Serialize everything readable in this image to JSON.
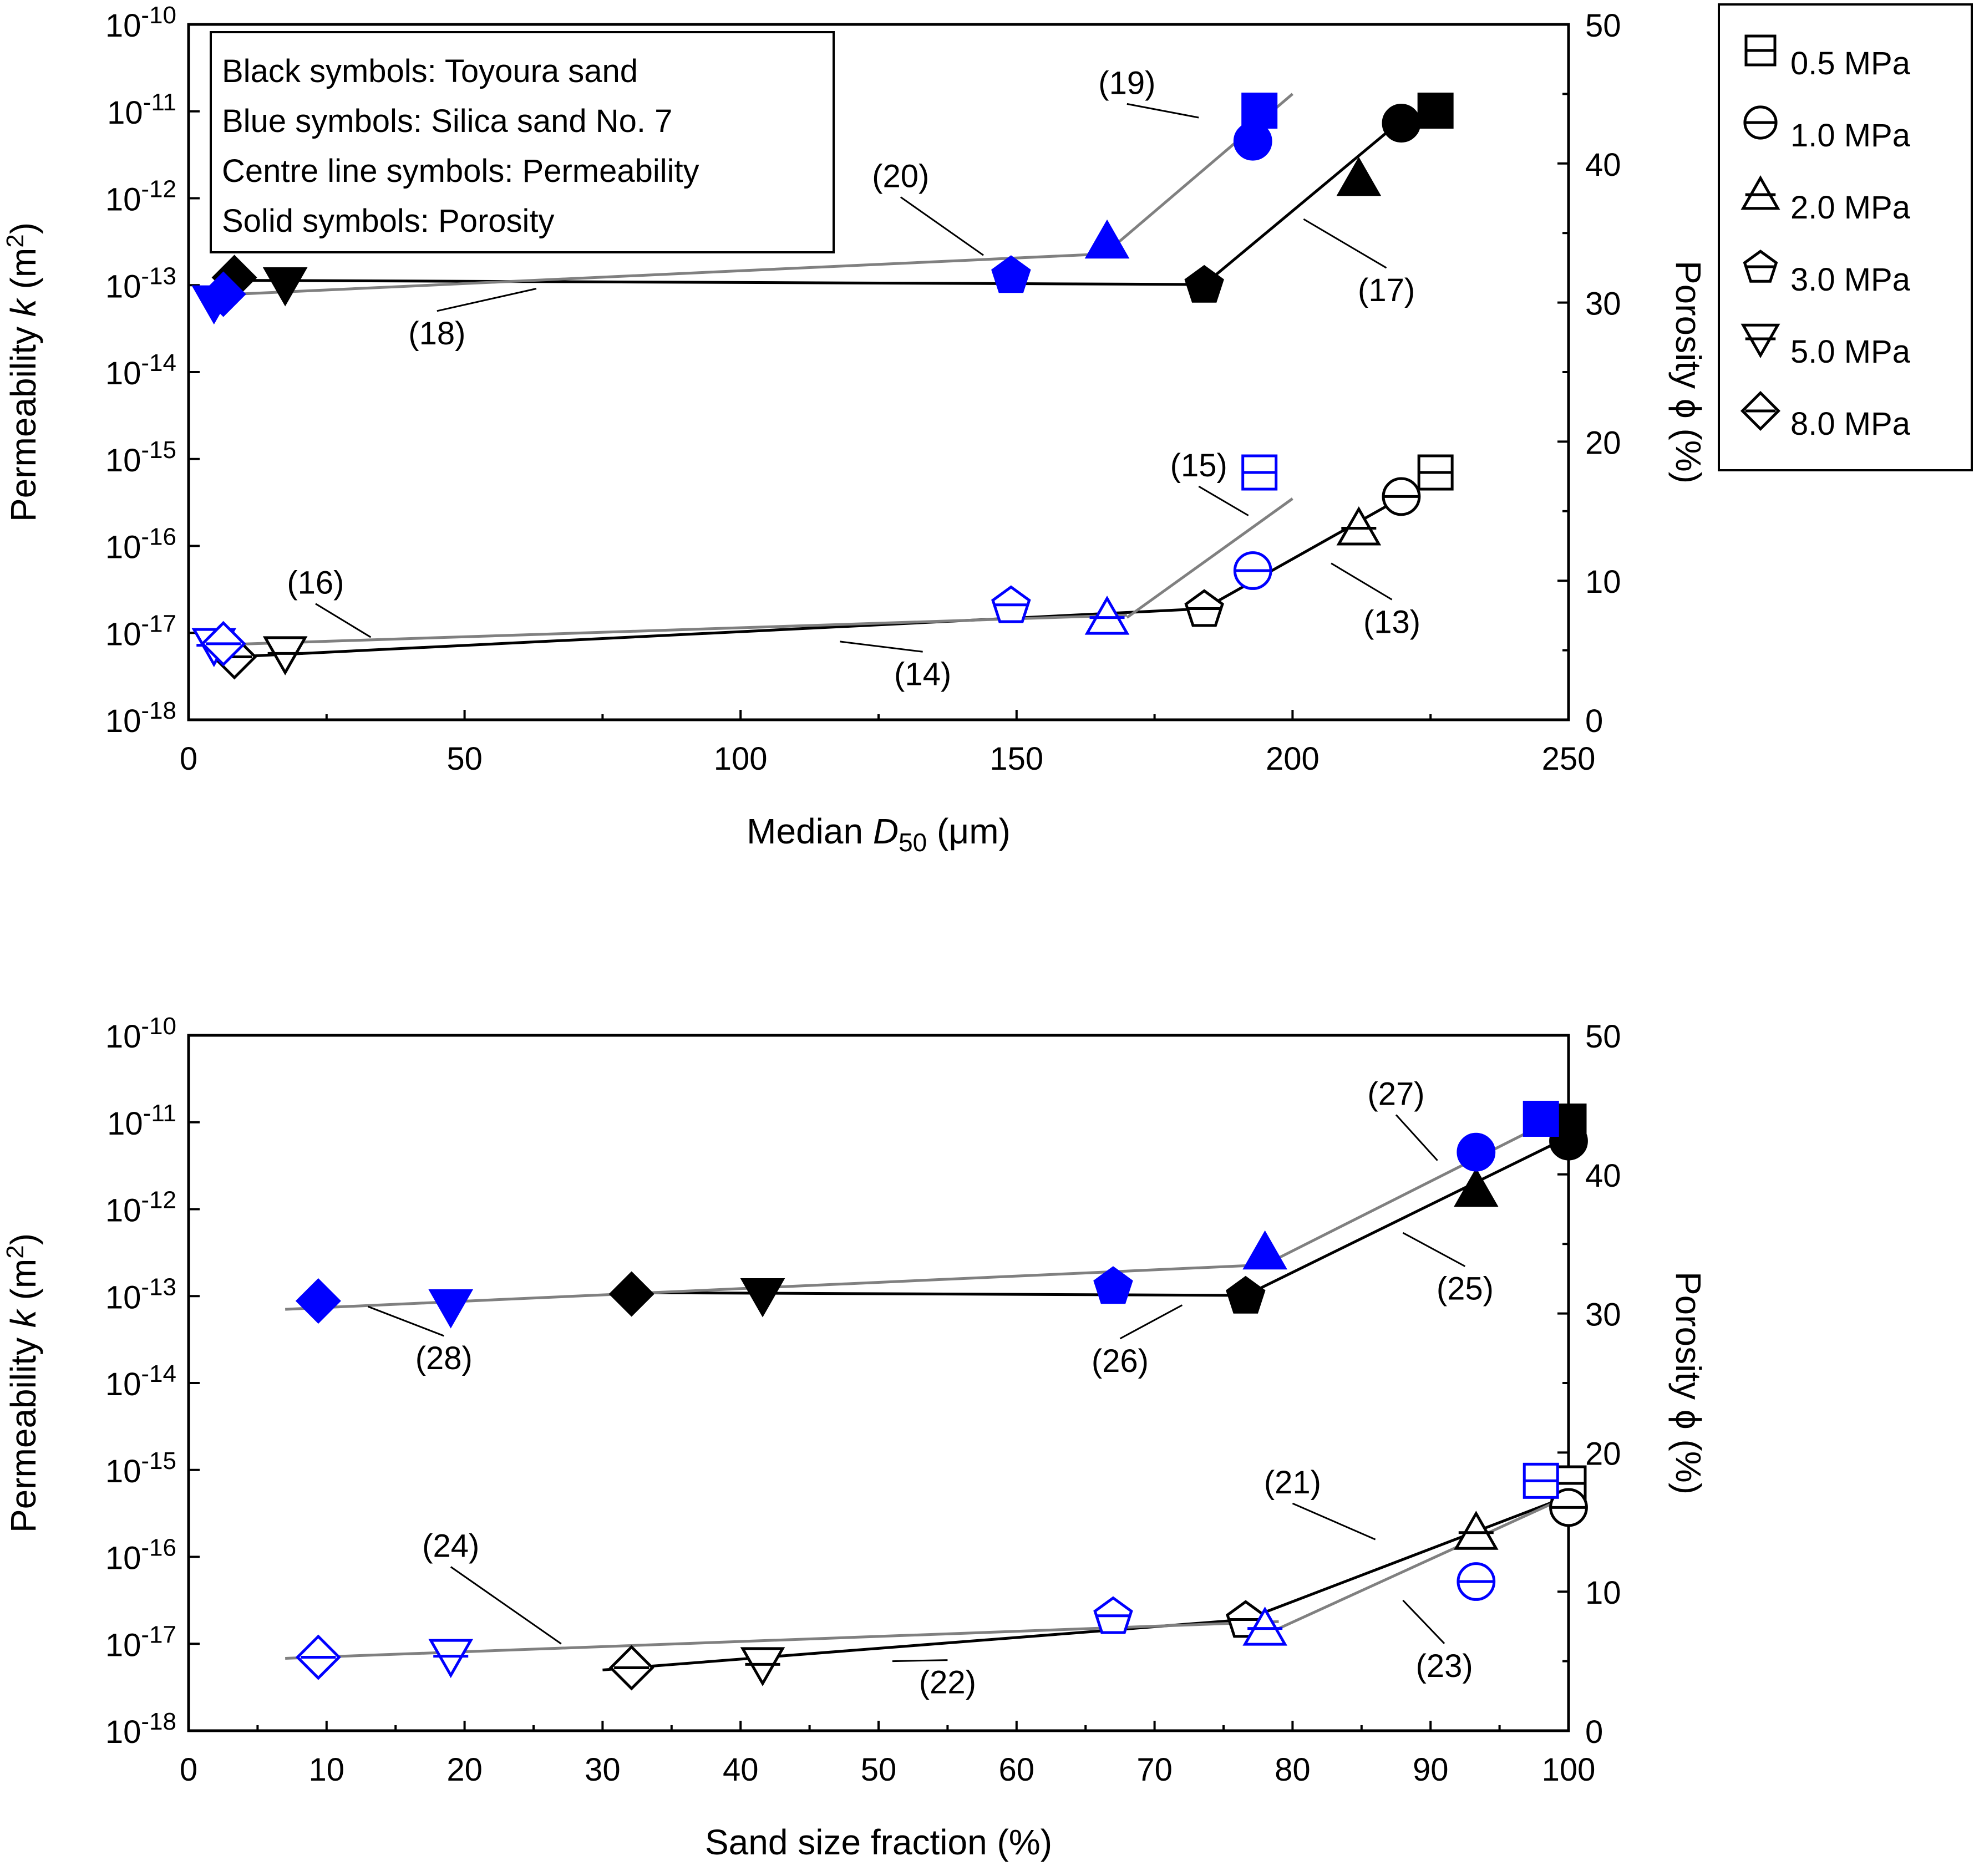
{
  "colors": {
    "toyoura": "#000000",
    "silica": "#0000ff",
    "toyoura_line": "#000000",
    "silica_line": "#808080",
    "axis": "#000000",
    "background": "#ffffff"
  },
  "legend": {
    "items": [
      {
        "label": "0.5 MPa",
        "symbol": "square"
      },
      {
        "label": "1.0 MPa",
        "symbol": "circle"
      },
      {
        "label": "2.0 MPa",
        "symbol": "triangle-up"
      },
      {
        "label": "3.0 MPa",
        "symbol": "pentagon"
      },
      {
        "label": "5.0 MPa",
        "symbol": "triangle-down"
      },
      {
        "label": "8.0 MPa",
        "symbol": "diamond"
      }
    ]
  },
  "notes": {
    "lines": [
      "Black symbols: Toyoura sand",
      "Blue symbols: Silica sand No. 7",
      "Centre line symbols: Permeability",
      "Solid symbols: Porosity"
    ]
  },
  "chart_data": [
    {
      "type": "scatter",
      "id": "top",
      "title": "",
      "xlabel_main": "Median ",
      "xlabel_italic": "D",
      "xlabel_sub": "50",
      "xlabel_unit": " (μm)",
      "ylabel_left": "Permeability ",
      "ylabel_left_italic": "k",
      "ylabel_left_unit": " (m",
      "ylabel_left_sup": "2",
      "ylabel_left_close": ")",
      "ylabel_right": "Porosity ϕ (%)",
      "xlim": [
        0,
        250
      ],
      "xticks": [
        "0",
        "50",
        "100",
        "150",
        "200",
        "250"
      ],
      "xtick_values": [
        0,
        50,
        100,
        150,
        200,
        250
      ],
      "ylim_left_log10": [
        -18,
        -10
      ],
      "yticks_left_base": "10",
      "yticks_left_exp": [
        "-18",
        "-17",
        "-16",
        "-15",
        "-14",
        "-13",
        "-12",
        "-11",
        "-10"
      ],
      "ylim_right": [
        0,
        50
      ],
      "yticks_right": [
        "0",
        "10",
        "20",
        "30",
        "40",
        "50"
      ],
      "series": [
        {
          "name": "Toyoura permeability",
          "sand": "toyoura",
          "kind": "permeability",
          "filled": false,
          "points": [
            {
              "x": 225.9,
              "k": 7e-16,
              "symbol": "square"
            },
            {
              "x": 219.7,
              "k": 3.7e-16,
              "symbol": "circle"
            },
            {
              "x": 212.0,
              "k": 1.6e-16,
              "symbol": "triangle-up"
            },
            {
              "x": 184.0,
              "k": 1.9e-17,
              "symbol": "pentagon"
            },
            {
              "x": 17.5,
              "k": 5.8e-18,
              "symbol": "triangle-down"
            },
            {
              "x": 8.3,
              "k": 5.3e-18,
              "symbol": "diamond"
            }
          ]
        },
        {
          "name": "Silica permeability",
          "sand": "silica",
          "kind": "permeability",
          "filled": false,
          "points": [
            {
              "x": 194.0,
              "k": 7e-16,
              "symbol": "square"
            },
            {
              "x": 192.8,
              "k": 5.2e-17,
              "symbol": "circle"
            },
            {
              "x": 166.4,
              "k": 1.5e-17,
              "symbol": "triangle-up"
            },
            {
              "x": 149.0,
              "k": 2.1e-17,
              "symbol": "pentagon"
            },
            {
              "x": 4.6,
              "k": 7.2e-18,
              "symbol": "triangle-down"
            },
            {
              "x": 6.3,
              "k": 7.5e-18,
              "symbol": "diamond"
            }
          ]
        },
        {
          "name": "Toyoura porosity",
          "sand": "toyoura",
          "kind": "porosity",
          "filled": true,
          "points": [
            {
              "x": 225.9,
              "phi": 43.8,
              "symbol": "square"
            },
            {
              "x": 219.7,
              "phi": 42.9,
              "symbol": "circle"
            },
            {
              "x": 212.0,
              "phi": 38.9,
              "symbol": "triangle-up"
            },
            {
              "x": 184.0,
              "phi": 31.3,
              "symbol": "pentagon"
            },
            {
              "x": 17.5,
              "phi": 31.3,
              "symbol": "triangle-down"
            },
            {
              "x": 8.3,
              "phi": 31.8,
              "symbol": "diamond"
            }
          ]
        },
        {
          "name": "Silica porosity",
          "sand": "silica",
          "kind": "porosity",
          "filled": true,
          "points": [
            {
              "x": 194.0,
              "phi": 43.8,
              "symbol": "square"
            },
            {
              "x": 192.8,
              "phi": 41.6,
              "symbol": "circle"
            },
            {
              "x": 166.4,
              "phi": 34.4,
              "symbol": "triangle-up"
            },
            {
              "x": 149.0,
              "phi": 32.0,
              "symbol": "pentagon"
            },
            {
              "x": 4.6,
              "phi": 30.0,
              "symbol": "triangle-down"
            },
            {
              "x": 6.3,
              "phi": 30.6,
              "symbol": "diamond"
            }
          ]
        }
      ],
      "fit_lines": [
        {
          "name": "(13)",
          "sand": "toyoura",
          "axis": "left",
          "pts": [
            [
              184,
              1.9e-17
            ],
            [
              226,
              6e-16
            ]
          ]
        },
        {
          "name": "(14)",
          "sand": "toyoura",
          "axis": "left",
          "pts": [
            [
              8.3,
              5.3e-18
            ],
            [
              184,
              1.9e-17
            ]
          ]
        },
        {
          "name": "(15)",
          "sand": "silica",
          "axis": "left",
          "pts": [
            [
              170,
              1.5e-17
            ],
            [
              200,
              3.5e-16
            ]
          ]
        },
        {
          "name": "(16)",
          "sand": "silica",
          "axis": "left",
          "pts": [
            [
              3,
              7.2e-18
            ],
            [
              170,
              1.6e-17
            ]
          ]
        },
        {
          "name": "(17)",
          "sand": "toyoura",
          "axis": "right",
          "pts": [
            [
              184,
              31.3
            ],
            [
              220,
              43.2
            ]
          ]
        },
        {
          "name": "(18)",
          "sand": "toyoura",
          "axis": "right",
          "pts": [
            [
              8.3,
              31.6
            ],
            [
              184,
              31.3
            ]
          ]
        },
        {
          "name": "(19)",
          "sand": "silica",
          "axis": "right",
          "pts": [
            [
              166,
              33.5
            ],
            [
              200,
              45.0
            ]
          ]
        },
        {
          "name": "(20)",
          "sand": "silica",
          "axis": "right",
          "pts": [
            [
              3,
              30.5
            ],
            [
              166,
              33.5
            ]
          ]
        }
      ],
      "line_labels": [
        {
          "text": "(13)",
          "x": 218,
          "y_log": -17.0,
          "anchor_x": 207,
          "anchor_y_log": -16.2
        },
        {
          "text": "(14)",
          "x": 133,
          "y_log": -17.6,
          "anchor_x": 118,
          "anchor_y_log": -17.1
        },
        {
          "text": "(15)",
          "x": 183,
          "y_log": -15.2,
          "anchor_x": 192,
          "anchor_y_log": -15.65
        },
        {
          "text": "(16)",
          "x": 23,
          "y_log": -16.55,
          "anchor_x": 33,
          "anchor_y_log": -17.05
        },
        {
          "text": "(17)",
          "x": 217,
          "y_phi": 30.1,
          "anchor_x": 202,
          "anchor_y_phi": 36.0
        },
        {
          "text": "(18)",
          "x": 45,
          "y_phi": 27.0,
          "anchor_x": 63,
          "anchor_y_phi": 31.0
        },
        {
          "text": "(19)",
          "x": 170,
          "y_phi": 45.0,
          "anchor_x": 183,
          "anchor_y_phi": 43.3
        },
        {
          "text": "(20)",
          "x": 129,
          "y_phi": 38.3,
          "anchor_x": 144,
          "anchor_y_phi": 33.4
        }
      ]
    },
    {
      "type": "scatter",
      "id": "bottom",
      "title": "",
      "xlabel": "Sand size fraction (%)",
      "ylabel_left": "Permeability ",
      "ylabel_left_italic": "k",
      "ylabel_left_unit": " (m",
      "ylabel_left_sup": "2",
      "ylabel_left_close": ")",
      "ylabel_right": "Porosity ϕ (%)",
      "xlim": [
        0,
        100
      ],
      "xticks": [
        "0",
        "10",
        "20",
        "30",
        "40",
        "50",
        "60",
        "70",
        "80",
        "90",
        "100"
      ],
      "xtick_values": [
        0,
        10,
        20,
        30,
        40,
        50,
        60,
        70,
        80,
        90,
        100
      ],
      "ylim_left_log10": [
        -18,
        -10
      ],
      "yticks_left_base": "10",
      "yticks_left_exp": [
        "-18",
        "-17",
        "-16",
        "-15",
        "-14",
        "-13",
        "-12",
        "-11",
        "-10"
      ],
      "ylim_right": [
        0,
        50
      ],
      "yticks_right": [
        "0",
        "10",
        "20",
        "30",
        "40",
        "50"
      ],
      "series": [
        {
          "name": "Toyoura permeability",
          "sand": "toyoura",
          "kind": "permeability",
          "filled": false,
          "points": [
            {
              "x": 100.0,
              "k": 7e-16,
              "symbol": "square"
            },
            {
              "x": 100.0,
              "k": 3.7e-16,
              "symbol": "circle"
            },
            {
              "x": 93.3,
              "k": 1.9e-16,
              "symbol": "triangle-up"
            },
            {
              "x": 76.6,
              "k": 1.9e-17,
              "symbol": "pentagon"
            },
            {
              "x": 41.6,
              "k": 5.8e-18,
              "symbol": "triangle-down"
            },
            {
              "x": 32.1,
              "k": 5.3e-18,
              "symbol": "diamond"
            }
          ]
        },
        {
          "name": "Silica permeability",
          "sand": "silica",
          "kind": "permeability",
          "filled": false,
          "points": [
            {
              "x": 98.0,
              "k": 7.5e-16,
              "symbol": "square"
            },
            {
              "x": 93.3,
              "k": 5.2e-17,
              "symbol": "circle"
            },
            {
              "x": 78.0,
              "k": 1.5e-17,
              "symbol": "triangle-up"
            },
            {
              "x": 67.0,
              "k": 2.1e-17,
              "symbol": "pentagon"
            },
            {
              "x": 19.0,
              "k": 7.2e-18,
              "symbol": "triangle-down"
            },
            {
              "x": 9.4,
              "k": 7e-18,
              "symbol": "diamond"
            }
          ]
        },
        {
          "name": "Toyoura porosity",
          "sand": "toyoura",
          "kind": "porosity",
          "filled": true,
          "points": [
            {
              "x": 100.0,
              "phi": 43.8,
              "symbol": "square"
            },
            {
              "x": 100.0,
              "phi": 42.4,
              "symbol": "circle"
            },
            {
              "x": 93.3,
              "phi": 38.9,
              "symbol": "triangle-up"
            },
            {
              "x": 76.6,
              "phi": 31.3,
              "symbol": "pentagon"
            },
            {
              "x": 41.6,
              "phi": 31.3,
              "symbol": "triangle-down"
            },
            {
              "x": 32.1,
              "phi": 31.4,
              "symbol": "diamond"
            }
          ]
        },
        {
          "name": "Silica porosity",
          "sand": "silica",
          "kind": "porosity",
          "filled": true,
          "points": [
            {
              "x": 98.0,
              "phi": 44.0,
              "symbol": "square"
            },
            {
              "x": 93.3,
              "phi": 41.6,
              "symbol": "circle"
            },
            {
              "x": 78.0,
              "phi": 34.4,
              "symbol": "triangle-up"
            },
            {
              "x": 67.0,
              "phi": 32.0,
              "symbol": "pentagon"
            },
            {
              "x": 19.0,
              "phi": 30.5,
              "symbol": "triangle-down"
            },
            {
              "x": 9.4,
              "phi": 30.9,
              "symbol": "diamond"
            }
          ]
        }
      ],
      "fit_lines": [
        {
          "name": "(21)",
          "sand": "toyoura",
          "axis": "left",
          "pts": [
            [
              76.6,
              1.9e-17
            ],
            [
              100,
              5e-16
            ]
          ]
        },
        {
          "name": "(22)",
          "sand": "toyoura",
          "axis": "left",
          "pts": [
            [
              30,
              5e-18
            ],
            [
              76.6,
              1.9e-17
            ]
          ]
        },
        {
          "name": "(23)",
          "sand": "silica",
          "axis": "left",
          "pts": [
            [
              79,
              1.5e-17
            ],
            [
              100,
              5e-16
            ]
          ]
        },
        {
          "name": "(24)",
          "sand": "silica",
          "axis": "left",
          "pts": [
            [
              7,
              6.8e-18
            ],
            [
              79,
              1.8e-17
            ]
          ]
        },
        {
          "name": "(25)",
          "sand": "toyoura",
          "axis": "right",
          "pts": [
            [
              76.6,
              31.3
            ],
            [
              100,
              42.7
            ]
          ]
        },
        {
          "name": "(26)",
          "sand": "toyoura",
          "axis": "right",
          "pts": [
            [
              32,
              31.5
            ],
            [
              76.6,
              31.3
            ]
          ]
        },
        {
          "name": "(27)",
          "sand": "silica",
          "axis": "right",
          "pts": [
            [
              78,
              33.5
            ],
            [
              100,
              44.5
            ]
          ]
        },
        {
          "name": "(28)",
          "sand": "silica",
          "axis": "right",
          "pts": [
            [
              7,
              30.3
            ],
            [
              78,
              33.5
            ]
          ]
        }
      ],
      "line_labels": [
        {
          "text": "(21)",
          "x": 80,
          "y_log": -15.27,
          "anchor_x": 86,
          "anchor_y_log": -15.8
        },
        {
          "text": "(22)",
          "x": 55,
          "y_log": -17.57,
          "anchor_x": 51,
          "anchor_y_log": -17.2
        },
        {
          "text": "(23)",
          "x": 91,
          "y_log": -17.38,
          "anchor_x": 88,
          "anchor_y_log": -16.5
        },
        {
          "text": "(24)",
          "x": 19,
          "y_log": -16.0,
          "anchor_x": 27,
          "anchor_y_log": -17.0
        },
        {
          "text": "(25)",
          "x": 92.5,
          "y_phi": 31.0,
          "anchor_x": 88,
          "anchor_y_phi": 35.8
        },
        {
          "text": "(26)",
          "x": 67.5,
          "y_phi": 25.8,
          "anchor_x": 72,
          "anchor_y_phi": 30.6
        },
        {
          "text": "(27)",
          "x": 87.5,
          "y_phi": 45.0,
          "anchor_x": 90.5,
          "anchor_y_phi": 41.0
        },
        {
          "text": "(28)",
          "x": 18.5,
          "y_phi": 26.0,
          "anchor_x": 13,
          "anchor_y_phi": 30.5
        }
      ]
    }
  ]
}
